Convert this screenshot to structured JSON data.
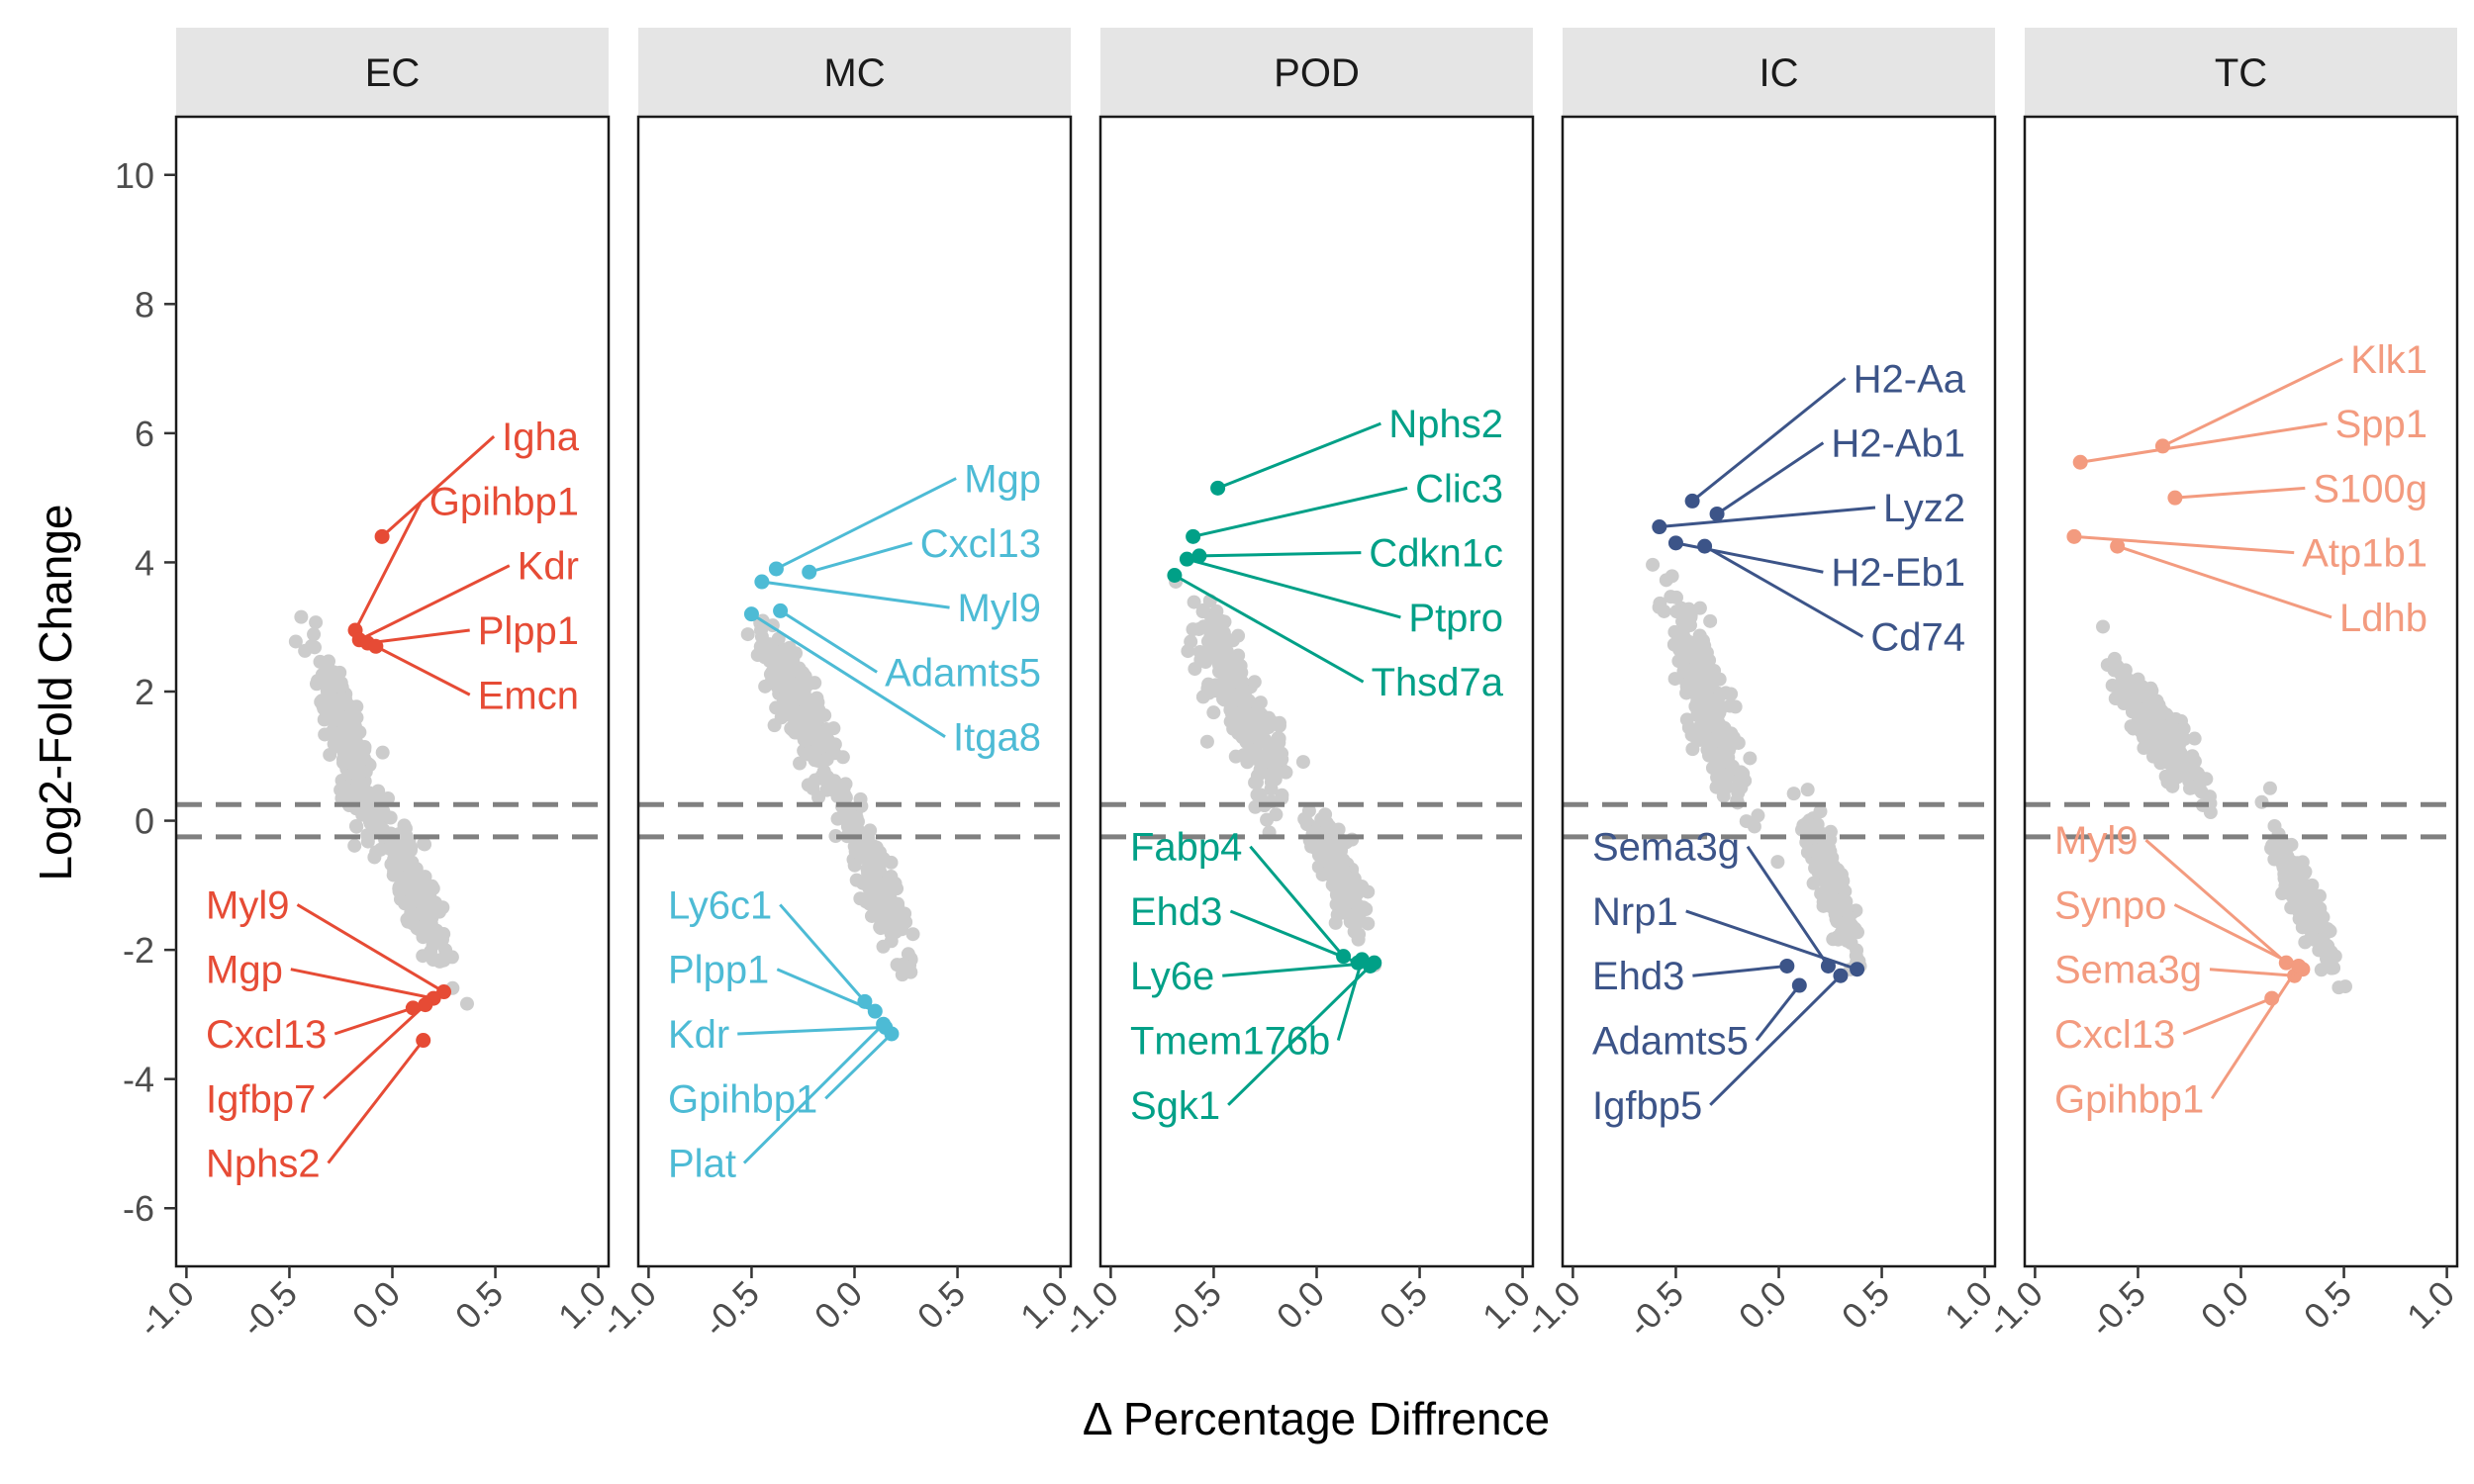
{
  "chart_data": {
    "type": "scatter",
    "xlabel": "Δ Percentage Diffrence",
    "ylabel": "Log2-Fold Change",
    "xlim": [
      -1.05,
      1.05
    ],
    "ylim": [
      -6.9,
      10.9
    ],
    "x_ticks": [
      "-1.0",
      "-0.5",
      "0.0",
      "0.5",
      "1.0"
    ],
    "y_ticks": [
      "-6",
      "-4",
      "-2",
      "0",
      "2",
      "4",
      "6",
      "8",
      "10"
    ],
    "threshold_lines": [
      0.25,
      -0.25
    ],
    "background_color": "#cccccc",
    "panels": [
      {
        "name": "EC",
        "color": "#e64b35",
        "genes": [
          {
            "label": "Igha",
            "x": -0.05,
            "y": 4.4,
            "label_y": 5.95,
            "side": "right"
          },
          {
            "label": "Gpihbp1",
            "x": -0.18,
            "y": 2.95,
            "label_y": 4.95,
            "side": "right"
          },
          {
            "label": "Kdr",
            "x": -0.16,
            "y": 2.8,
            "label_y": 3.95,
            "side": "right"
          },
          {
            "label": "Plpp1",
            "x": -0.12,
            "y": 2.75,
            "label_y": 2.95,
            "side": "right"
          },
          {
            "label": "Emcn",
            "x": -0.08,
            "y": 2.7,
            "label_y": 1.95,
            "side": "right"
          },
          {
            "label": "Myl9",
            "x": 0.25,
            "y": -2.65,
            "label_y": -1.3,
            "side": "left"
          },
          {
            "label": "Mgp",
            "x": 0.2,
            "y": -2.75,
            "label_y": -2.3,
            "side": "left"
          },
          {
            "label": "Cxcl13",
            "x": 0.1,
            "y": -2.9,
            "label_y": -3.3,
            "side": "left"
          },
          {
            "label": "Igfbp7",
            "x": 0.16,
            "y": -2.85,
            "label_y": -4.3,
            "side": "left"
          },
          {
            "label": "Nphs2",
            "x": 0.15,
            "y": -3.4,
            "label_y": -5.3,
            "side": "left"
          }
        ]
      },
      {
        "name": "MC",
        "color": "#4dbbd5",
        "genes": [
          {
            "label": "Mgp",
            "x": -0.38,
            "y": 3.9,
            "label_y": 5.3,
            "side": "right"
          },
          {
            "label": "Cxcl13",
            "x": -0.22,
            "y": 3.85,
            "label_y": 4.3,
            "side": "right"
          },
          {
            "label": "Myl9",
            "x": -0.45,
            "y": 3.7,
            "label_y": 3.3,
            "side": "right"
          },
          {
            "label": "Adamts5",
            "x": -0.36,
            "y": 3.25,
            "label_y": 2.3,
            "side": "right"
          },
          {
            "label": "Itga8",
            "x": -0.5,
            "y": 3.2,
            "label_y": 1.3,
            "side": "right"
          },
          {
            "label": "Ly6c1",
            "x": 0.05,
            "y": -2.8,
            "label_y": -1.3,
            "side": "left"
          },
          {
            "label": "Plpp1",
            "x": 0.1,
            "y": -2.95,
            "label_y": -2.3,
            "side": "left"
          },
          {
            "label": "Kdr",
            "x": 0.15,
            "y": -3.2,
            "label_y": -3.3,
            "side": "left"
          },
          {
            "label": "Gpihbp1",
            "x": 0.18,
            "y": -3.3,
            "label_y": -4.3,
            "side": "left"
          },
          {
            "label": "Plat",
            "x": 0.14,
            "y": -3.15,
            "label_y": -5.3,
            "side": "left"
          }
        ]
      },
      {
        "name": "POD",
        "color": "#00a087",
        "genes": [
          {
            "label": "Nphs2",
            "x": -0.48,
            "y": 5.15,
            "label_y": 6.15,
            "side": "right"
          },
          {
            "label": "Clic3",
            "x": -0.6,
            "y": 4.4,
            "label_y": 5.15,
            "side": "right"
          },
          {
            "label": "Cdkn1c",
            "x": -0.57,
            "y": 4.1,
            "label_y": 4.15,
            "side": "right"
          },
          {
            "label": "Ptpro",
            "x": -0.63,
            "y": 4.05,
            "label_y": 3.15,
            "side": "right"
          },
          {
            "label": "Thsd7a",
            "x": -0.69,
            "y": 3.8,
            "label_y": 2.15,
            "side": "right"
          },
          {
            "label": "Fabp4",
            "x": 0.13,
            "y": -2.1,
            "label_y": -0.4,
            "side": "left"
          },
          {
            "label": "Ehd3",
            "x": 0.2,
            "y": -2.2,
            "label_y": -1.4,
            "side": "left"
          },
          {
            "label": "Ly6e",
            "x": 0.28,
            "y": -2.2,
            "label_y": -2.4,
            "side": "left"
          },
          {
            "label": "Tmem176b",
            "x": 0.22,
            "y": -2.15,
            "label_y": -3.4,
            "side": "left"
          },
          {
            "label": "Sgk1",
            "x": 0.26,
            "y": -2.25,
            "label_y": -4.4,
            "side": "left"
          }
        ]
      },
      {
        "name": "IC",
        "color": "#3c5488",
        "genes": [
          {
            "label": "H2-Aa",
            "x": -0.42,
            "y": 4.95,
            "label_y": 6.85,
            "side": "right"
          },
          {
            "label": "H2-Ab1",
            "x": -0.3,
            "y": 4.75,
            "label_y": 5.85,
            "side": "right"
          },
          {
            "label": "Lyz2",
            "x": -0.58,
            "y": 4.55,
            "label_y": 4.85,
            "side": "right"
          },
          {
            "label": "H2-Eb1",
            "x": -0.5,
            "y": 4.3,
            "label_y": 3.85,
            "side": "right"
          },
          {
            "label": "Cd74",
            "x": -0.36,
            "y": 4.25,
            "label_y": 2.85,
            "side": "right"
          },
          {
            "label": "Sema3g",
            "x": 0.24,
            "y": -2.25,
            "label_y": -0.4,
            "side": "left"
          },
          {
            "label": "Nrp1",
            "x": 0.38,
            "y": -2.3,
            "label_y": -1.4,
            "side": "left"
          },
          {
            "label": "Ehd3",
            "x": 0.04,
            "y": -2.25,
            "label_y": -2.4,
            "side": "left"
          },
          {
            "label": "Adamts5",
            "x": 0.1,
            "y": -2.55,
            "label_y": -3.4,
            "side": "left"
          },
          {
            "label": "Igfbp5",
            "x": 0.3,
            "y": -2.4,
            "label_y": -4.4,
            "side": "left"
          }
        ]
      },
      {
        "name": "TC",
        "color": "#f39b7f",
        "genes": [
          {
            "label": "Klk1",
            "x": -0.38,
            "y": 5.8,
            "label_y": 7.15,
            "side": "right"
          },
          {
            "label": "Spp1",
            "x": -0.78,
            "y": 5.55,
            "label_y": 6.15,
            "side": "right"
          },
          {
            "label": "S100g",
            "x": -0.32,
            "y": 5.0,
            "label_y": 5.15,
            "side": "right"
          },
          {
            "label": "Atp1b1",
            "x": -0.81,
            "y": 4.4,
            "label_y": 4.15,
            "side": "right"
          },
          {
            "label": "Ldhb",
            "x": -0.6,
            "y": 4.25,
            "label_y": 3.15,
            "side": "right"
          },
          {
            "label": "Myl9",
            "x": 0.22,
            "y": -2.2,
            "label_y": -0.3,
            "side": "left"
          },
          {
            "label": "Synpo",
            "x": 0.3,
            "y": -2.3,
            "label_y": -1.3,
            "side": "left"
          },
          {
            "label": "Sema3g",
            "x": 0.26,
            "y": -2.4,
            "label_y": -2.3,
            "side": "left"
          },
          {
            "label": "Cxcl13",
            "x": 0.15,
            "y": -2.75,
            "label_y": -3.3,
            "side": "left"
          },
          {
            "label": "Gpihbp1",
            "x": 0.28,
            "y": -2.25,
            "label_y": -4.3,
            "side": "left"
          }
        ]
      }
    ]
  }
}
